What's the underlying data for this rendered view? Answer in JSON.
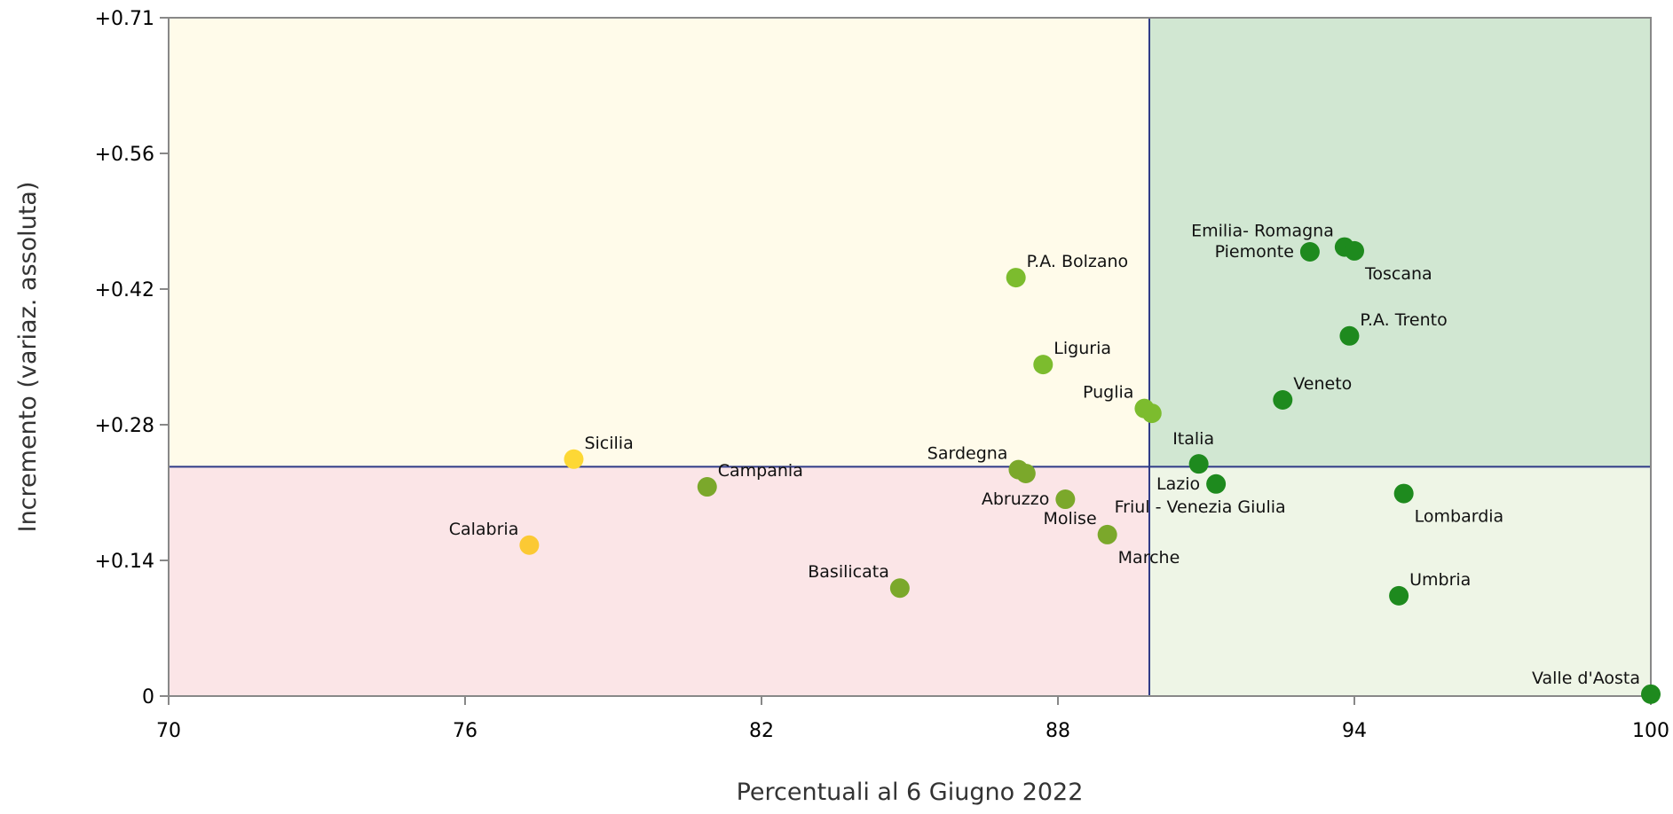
{
  "chart_data": {
    "type": "scatter",
    "title": "",
    "xlabel": "Percentuali al 6 Giugno 2022",
    "ylabel": "Incremento (variaz. assoluta)",
    "xlim": [
      70,
      100
    ],
    "ylim": [
      0,
      0.71
    ],
    "x_ticks": [
      {
        "value": 70,
        "label": "70"
      },
      {
        "value": 76,
        "label": "76"
      },
      {
        "value": 82,
        "label": "82"
      },
      {
        "value": 88,
        "label": "88"
      },
      {
        "value": 94,
        "label": "94"
      },
      {
        "value": 100,
        "label": "100"
      }
    ],
    "y_ticks": [
      {
        "value": 0,
        "label": "0"
      },
      {
        "value": 0.142,
        "label": "+0.14"
      },
      {
        "value": 0.284,
        "label": "+0.28"
      },
      {
        "value": 0.426,
        "label": "+0.42"
      },
      {
        "value": 0.568,
        "label": "+0.56"
      },
      {
        "value": 0.71,
        "label": "+0.71"
      }
    ],
    "reference_lines": {
      "x": 89.85,
      "y": 0.24
    },
    "quadrant_colors": {
      "top_left": "#fffbea",
      "top_right": "#d1e7d2",
      "bottom_left": "#fbe5e7",
      "bottom_right": "#eef5e6"
    },
    "line_color": "#2e3a87",
    "grid": false,
    "legend": "none",
    "points": [
      {
        "label": "Sicilia",
        "x": 78.2,
        "y": 0.248,
        "color": "#fdd835",
        "label_pos": "upper-right"
      },
      {
        "label": "Calabria",
        "x": 77.3,
        "y": 0.158,
        "color": "#fbc934",
        "label_pos": "upper-left"
      },
      {
        "label": "Campania",
        "x": 80.9,
        "y": 0.219,
        "color": "#7ba82b",
        "label_pos": "upper-right"
      },
      {
        "label": "Basilicata",
        "x": 84.8,
        "y": 0.113,
        "color": "#7ba82b",
        "label_pos": "upper-left"
      },
      {
        "label": "P.A. Bolzano",
        "x": 87.15,
        "y": 0.438,
        "color": "#7cbc2e",
        "label_pos": "upper-right"
      },
      {
        "label": "Liguria",
        "x": 87.7,
        "y": 0.347,
        "color": "#7cbc2e",
        "label_pos": "upper-right"
      },
      {
        "label": "Sardegna",
        "x": 87.2,
        "y": 0.237,
        "color": "#7ba82b",
        "label_pos": "upper-left"
      },
      {
        "label": "",
        "x": 87.35,
        "y": 0.233,
        "color": "#7ba82b",
        "label_pos": "none"
      },
      {
        "label": "Abruzzo",
        "x": 88.15,
        "y": 0.206,
        "color": "#7ba82b",
        "label_pos": "left"
      },
      {
        "label": "Molise",
        "x": 89.0,
        "y": 0.169,
        "color": "#7ba82b",
        "label_pos": "upper-left"
      },
      {
        "label": "Marche",
        "x": 89.0,
        "y": 0.169,
        "color": "#7ba82b",
        "label_pos": "lower-right"
      },
      {
        "label": "Puglia",
        "x": 89.75,
        "y": 0.301,
        "color": "#7cbc2e",
        "label_pos": "upper-left"
      },
      {
        "label": "",
        "x": 89.9,
        "y": 0.296,
        "color": "#7cbc2e",
        "label_pos": "none"
      },
      {
        "label": "Italia",
        "x": 90.85,
        "y": 0.243,
        "color": "#1e8a1e",
        "label_pos": "above"
      },
      {
        "label": "Lazio",
        "x": 91.2,
        "y": 0.222,
        "color": "#1e8a1e",
        "label_pos": "left"
      },
      {
        "label": "Friul - Venezia Giulia",
        "x": 91.2,
        "y": 0.222,
        "color": "#1e8a1e",
        "label_pos": "below"
      },
      {
        "label": "Veneto",
        "x": 92.55,
        "y": 0.31,
        "color": "#1e8a1e",
        "label_pos": "upper-right"
      },
      {
        "label": "Piemonte",
        "x": 93.1,
        "y": 0.465,
        "color": "#1e8a1e",
        "label_pos": "left"
      },
      {
        "label": "Emilia- Romagna",
        "x": 93.8,
        "y": 0.47,
        "color": "#1e8a1e",
        "label_pos": "upper-left"
      },
      {
        "label": "Toscana",
        "x": 94.0,
        "y": 0.466,
        "color": "#1e8a1e",
        "label_pos": "lower-right"
      },
      {
        "label": "P.A. Trento",
        "x": 93.9,
        "y": 0.377,
        "color": "#1e8a1e",
        "label_pos": "upper-right"
      },
      {
        "label": "Lombardia",
        "x": 95.0,
        "y": 0.212,
        "color": "#1e8a1e",
        "label_pos": "lower-right"
      },
      {
        "label": "Umbria",
        "x": 94.9,
        "y": 0.105,
        "color": "#1e8a1e",
        "label_pos": "upper-right"
      },
      {
        "label": "Valle d'Aosta",
        "x": 100.0,
        "y": 0.002,
        "color": "#1e8a1e",
        "label_pos": "upper-left"
      }
    ]
  }
}
